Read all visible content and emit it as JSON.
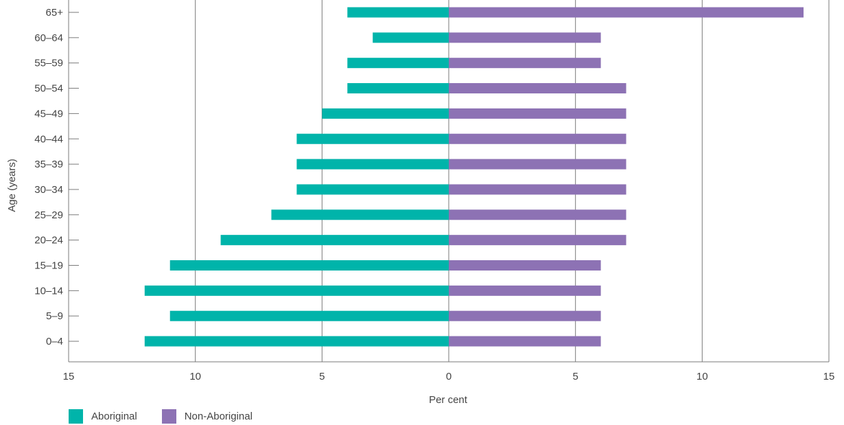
{
  "chart_data": {
    "type": "bar",
    "orientation": "horizontal-diverging",
    "categories": [
      "0–4",
      "5–9",
      "10–14",
      "15–19",
      "20–24",
      "25–29",
      "30–34",
      "35–39",
      "40–44",
      "45–49",
      "50–54",
      "55–59",
      "60–64",
      "65+"
    ],
    "series": [
      {
        "name": "Aboriginal",
        "color": "#00b4aa",
        "values": [
          12,
          11,
          12,
          11,
          9,
          7,
          6,
          6,
          6,
          5,
          4,
          4,
          3,
          4
        ]
      },
      {
        "name": "Non-Aboriginal",
        "color": "#8d72b4",
        "values": [
          6,
          6,
          6,
          6,
          7,
          7,
          7,
          7,
          7,
          7,
          7,
          6,
          6,
          14
        ]
      }
    ],
    "xlabel": "Per cent",
    "ylabel": "Age (years)",
    "xlim": [
      -15,
      15
    ],
    "x_ticks": [
      -15,
      -10,
      -5,
      0,
      5,
      10,
      15
    ],
    "x_tick_labels": [
      "15",
      "10",
      "5",
      "0",
      "5",
      "10",
      "15"
    ],
    "grid": "vertical",
    "legend_position": "bottom-left"
  }
}
